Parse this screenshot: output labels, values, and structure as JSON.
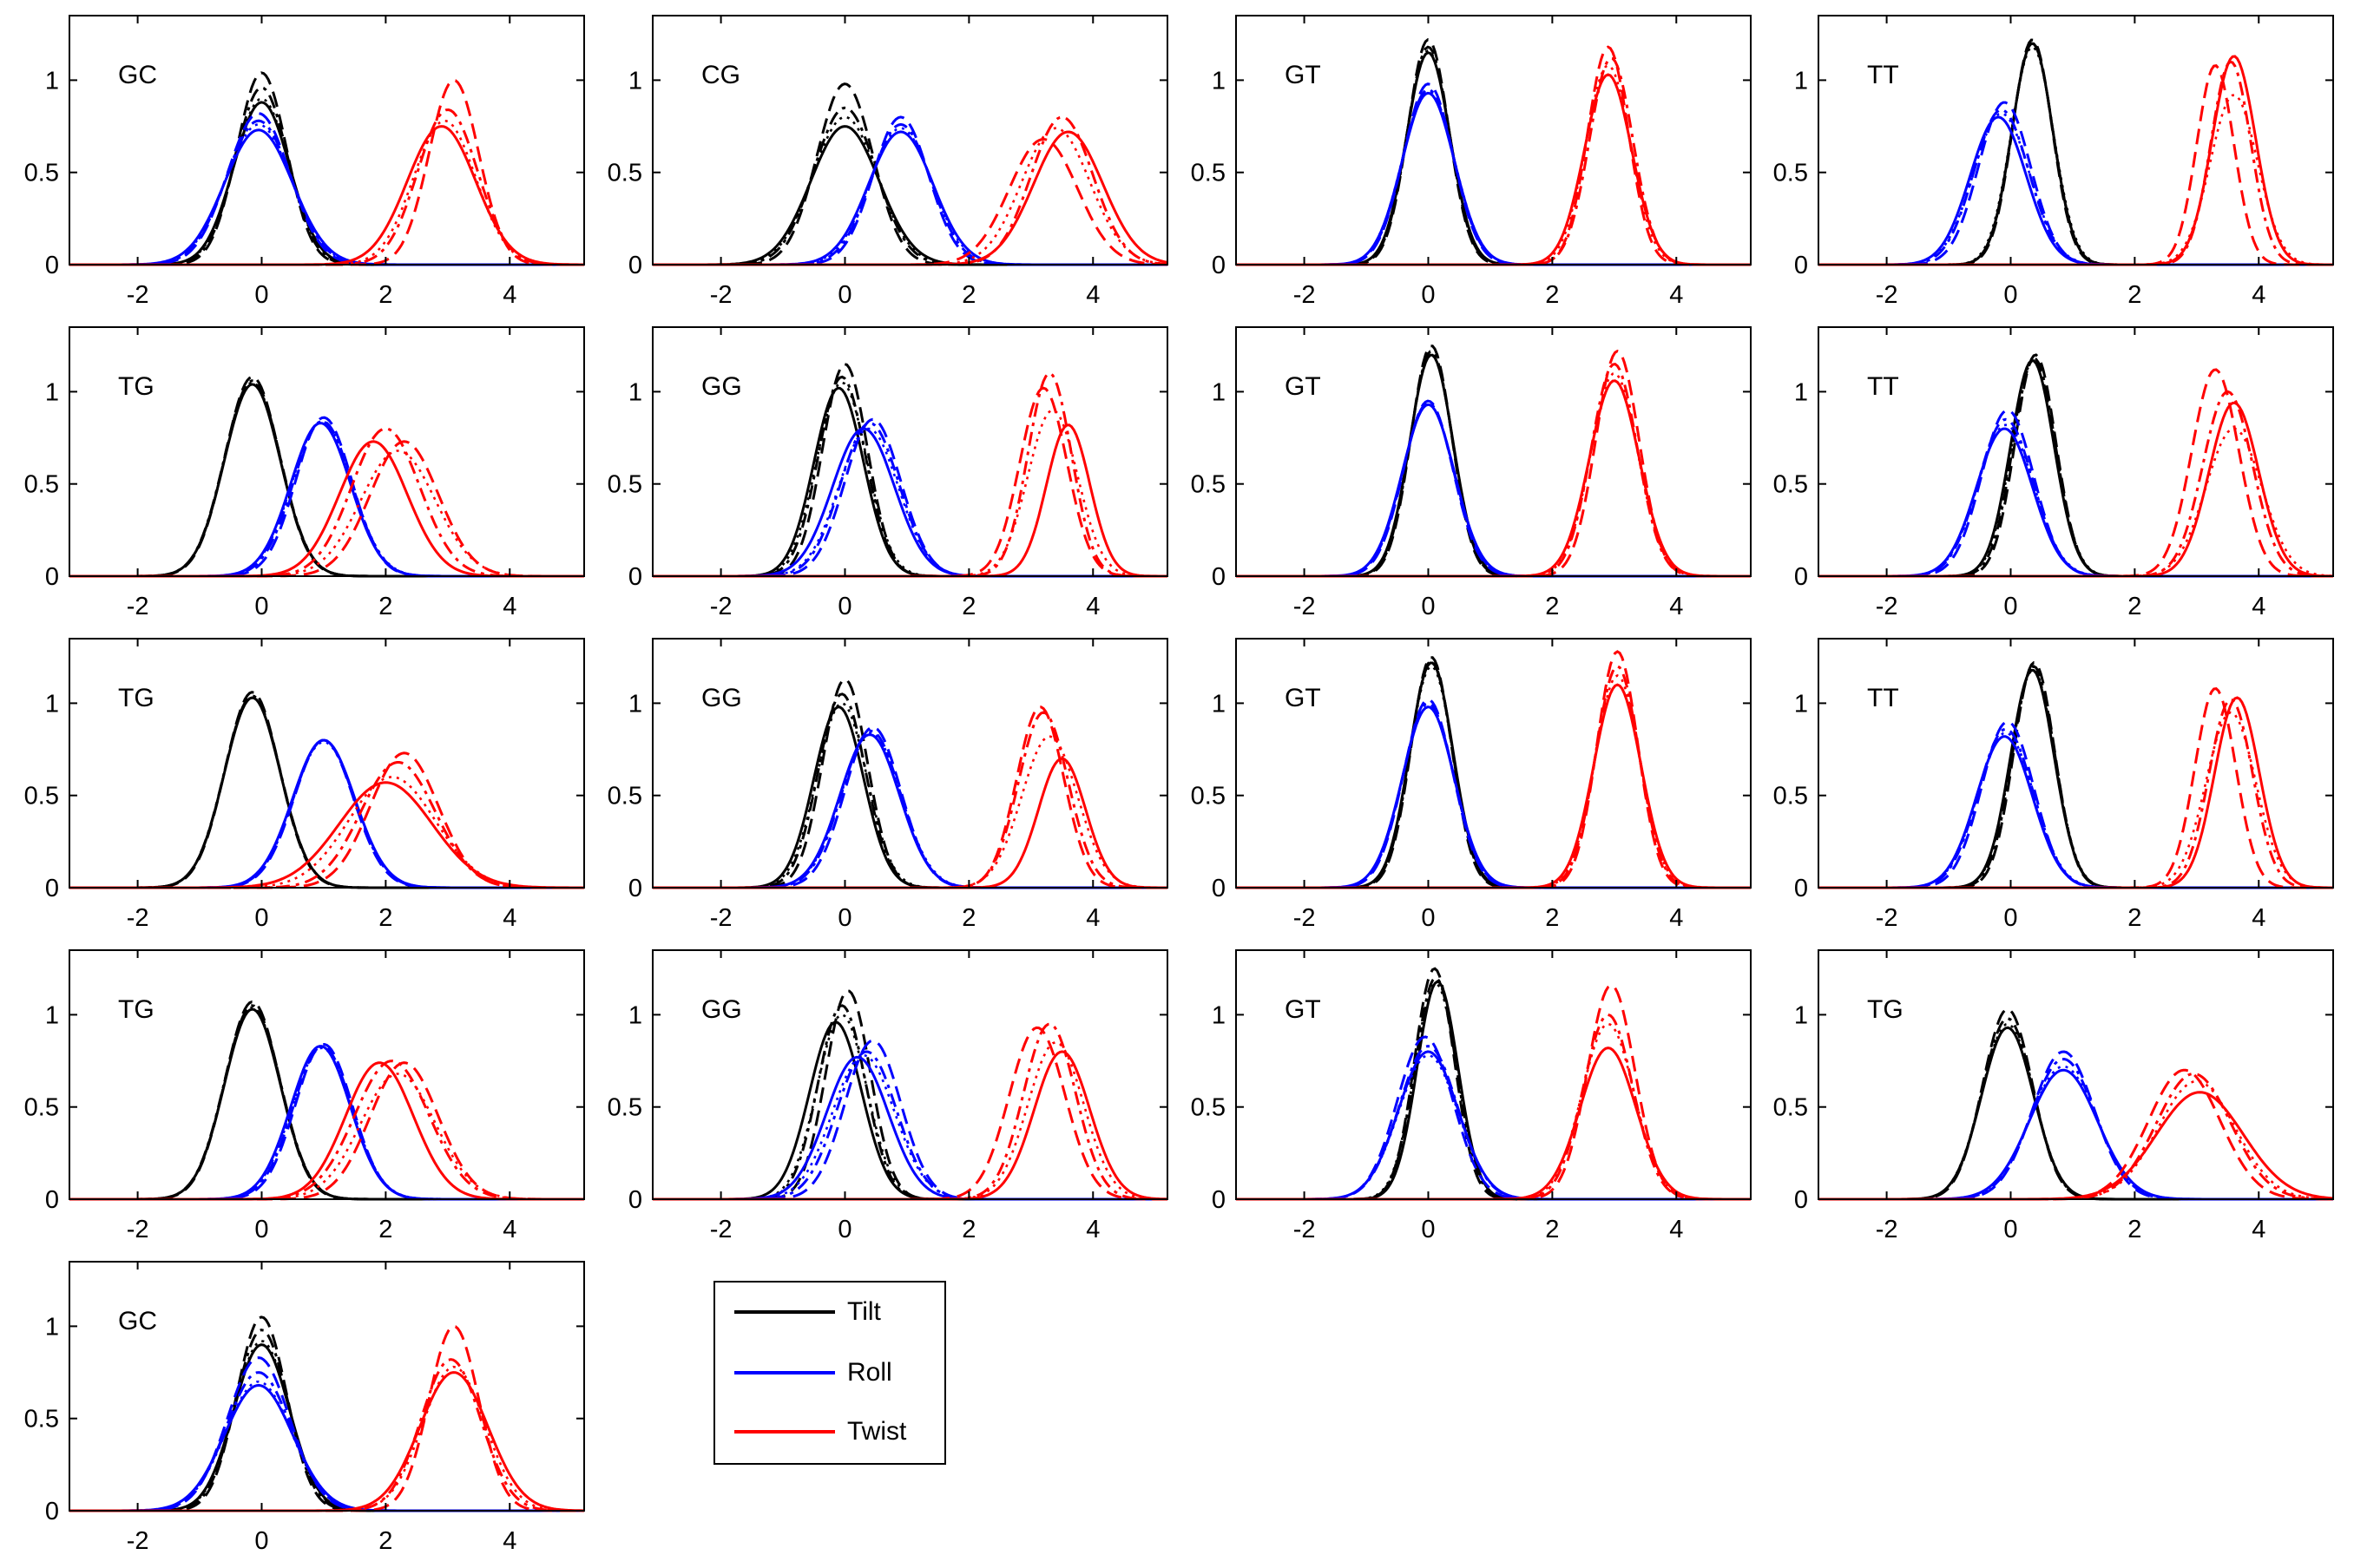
{
  "legend": [
    {
      "label": "Tilt",
      "color": "#000000"
    },
    {
      "label": "Roll",
      "color": "#0000ff"
    },
    {
      "label": "Twist",
      "color": "#ff0000"
    }
  ],
  "chart_data": {
    "type": "line",
    "grid": false,
    "x_ticks": [
      -2,
      0,
      2,
      4
    ],
    "y_ticks": [
      0,
      0.5,
      1
    ],
    "xlim": [
      -3.1,
      5.2
    ],
    "ylim": [
      0,
      1.35
    ],
    "line_styles": [
      "solid",
      "dashed",
      "dash-dot",
      "dotted"
    ],
    "panels": [
      {
        "label": "GC",
        "row": 0,
        "col": 0,
        "tilt": [
          [
            0,
            0.45,
            0.88
          ],
          [
            0,
            0.4,
            1.04
          ],
          [
            0,
            0.42,
            0.96
          ],
          [
            0,
            0.44,
            0.9
          ]
        ],
        "roll": [
          [
            -0.05,
            0.55,
            0.73
          ],
          [
            -0.05,
            0.5,
            0.82
          ],
          [
            -0.05,
            0.52,
            0.78
          ],
          [
            -0.05,
            0.53,
            0.76
          ]
        ],
        "twist": [
          [
            2.9,
            0.55,
            0.75
          ],
          [
            3.1,
            0.4,
            1.0
          ],
          [
            3.0,
            0.48,
            0.84
          ],
          [
            2.95,
            0.5,
            0.78
          ]
        ]
      },
      {
        "label": "CG",
        "row": 0,
        "col": 1,
        "tilt": [
          [
            0.0,
            0.55,
            0.75
          ],
          [
            0.0,
            0.45,
            0.98
          ],
          [
            0.0,
            0.5,
            0.85
          ],
          [
            0.0,
            0.52,
            0.8
          ]
        ],
        "roll": [
          [
            0.9,
            0.52,
            0.72
          ],
          [
            0.9,
            0.45,
            0.8
          ],
          [
            0.9,
            0.48,
            0.76
          ],
          [
            0.9,
            0.5,
            0.74
          ]
        ],
        "twist": [
          [
            3.6,
            0.56,
            0.72
          ],
          [
            3.2,
            0.55,
            0.68
          ],
          [
            3.5,
            0.5,
            0.8
          ],
          [
            3.4,
            0.55,
            0.74
          ]
        ]
      },
      {
        "label": "GT",
        "row": 0,
        "col": 2,
        "tilt": [
          [
            0.0,
            0.35,
            1.15
          ],
          [
            0.0,
            0.33,
            1.22
          ],
          [
            0.0,
            0.34,
            1.18
          ],
          [
            0.0,
            0.35,
            1.16
          ]
        ],
        "roll": [
          [
            0.0,
            0.42,
            0.93
          ],
          [
            0.0,
            0.4,
            0.98
          ],
          [
            0.0,
            0.41,
            0.95
          ],
          [
            0.0,
            0.42,
            0.94
          ]
        ],
        "twist": [
          [
            2.9,
            0.38,
            1.03
          ],
          [
            2.9,
            0.33,
            1.18
          ],
          [
            2.95,
            0.35,
            1.12
          ],
          [
            2.9,
            0.36,
            1.08
          ]
        ]
      },
      {
        "label": "TT",
        "row": 0,
        "col": 3,
        "tilt": [
          [
            0.35,
            0.33,
            1.2
          ],
          [
            0.35,
            0.32,
            1.22
          ],
          [
            0.35,
            0.33,
            1.2
          ],
          [
            0.35,
            0.34,
            1.18
          ]
        ],
        "roll": [
          [
            -0.2,
            0.45,
            0.8
          ],
          [
            -0.1,
            0.42,
            0.88
          ],
          [
            -0.15,
            0.44,
            0.84
          ],
          [
            -0.15,
            0.45,
            0.82
          ]
        ],
        "twist": [
          [
            3.6,
            0.35,
            1.13
          ],
          [
            3.3,
            0.3,
            1.08
          ],
          [
            3.55,
            0.32,
            1.1
          ],
          [
            3.6,
            0.38,
            0.92
          ]
        ]
      },
      {
        "label": "TG",
        "row": 1,
        "col": 0,
        "tilt": [
          [
            -0.15,
            0.45,
            1.04
          ],
          [
            -0.15,
            0.44,
            1.08
          ],
          [
            -0.15,
            0.45,
            1.06
          ],
          [
            -0.15,
            0.45,
            1.05
          ]
        ],
        "roll": [
          [
            0.95,
            0.48,
            0.83
          ],
          [
            1.0,
            0.45,
            0.86
          ],
          [
            0.98,
            0.47,
            0.84
          ],
          [
            0.97,
            0.48,
            0.84
          ]
        ],
        "twist": [
          [
            1.8,
            0.55,
            0.73
          ],
          [
            2.3,
            0.55,
            0.73
          ],
          [
            2.0,
            0.55,
            0.8
          ],
          [
            2.2,
            0.6,
            0.68
          ]
        ]
      },
      {
        "label": "GG",
        "row": 1,
        "col": 1,
        "tilt": [
          [
            -0.1,
            0.4,
            1.02
          ],
          [
            0.0,
            0.36,
            1.15
          ],
          [
            -0.05,
            0.38,
            1.08
          ],
          [
            -0.05,
            0.4,
            1.05
          ]
        ],
        "roll": [
          [
            0.3,
            0.5,
            0.8
          ],
          [
            0.45,
            0.45,
            0.85
          ],
          [
            0.4,
            0.47,
            0.83
          ],
          [
            0.38,
            0.48,
            0.8
          ]
        ],
        "twist": [
          [
            3.6,
            0.35,
            0.82
          ],
          [
            3.2,
            0.38,
            1.02
          ],
          [
            3.3,
            0.35,
            1.1
          ],
          [
            3.35,
            0.4,
            0.9
          ]
        ]
      },
      {
        "label": "GT",
        "row": 1,
        "col": 2,
        "tilt": [
          [
            0.05,
            0.35,
            1.2
          ],
          [
            0.05,
            0.33,
            1.25
          ],
          [
            0.05,
            0.34,
            1.22
          ],
          [
            0.05,
            0.35,
            1.2
          ]
        ],
        "roll": [
          [
            0.0,
            0.42,
            0.93
          ],
          [
            0.0,
            0.4,
            0.95
          ],
          [
            0.0,
            0.41,
            0.94
          ],
          [
            0.0,
            0.42,
            0.93
          ]
        ],
        "twist": [
          [
            3.0,
            0.4,
            1.06
          ],
          [
            3.05,
            0.35,
            1.22
          ],
          [
            3.0,
            0.37,
            1.15
          ],
          [
            3.0,
            0.38,
            1.1
          ]
        ]
      },
      {
        "label": "TT",
        "row": 1,
        "col": 3,
        "tilt": [
          [
            0.35,
            0.35,
            1.17
          ],
          [
            0.4,
            0.33,
            1.2
          ],
          [
            0.38,
            0.34,
            1.18
          ],
          [
            0.37,
            0.35,
            1.17
          ]
        ],
        "roll": [
          [
            -0.1,
            0.45,
            0.8
          ],
          [
            -0.05,
            0.42,
            0.9
          ],
          [
            -0.08,
            0.44,
            0.85
          ],
          [
            -0.08,
            0.45,
            0.82
          ]
        ],
        "twist": [
          [
            3.6,
            0.4,
            0.94
          ],
          [
            3.3,
            0.38,
            1.12
          ],
          [
            3.5,
            0.4,
            1.0
          ],
          [
            3.6,
            0.45,
            0.8
          ]
        ]
      },
      {
        "label": "TG",
        "row": 2,
        "col": 0,
        "tilt": [
          [
            -0.15,
            0.45,
            1.03
          ],
          [
            -0.15,
            0.44,
            1.06
          ],
          [
            -0.15,
            0.45,
            1.04
          ],
          [
            -0.15,
            0.45,
            1.03
          ]
        ],
        "roll": [
          [
            1.0,
            0.5,
            0.8
          ],
          [
            1.0,
            0.48,
            0.8
          ],
          [
            1.0,
            0.49,
            0.8
          ],
          [
            1.0,
            0.5,
            0.79
          ]
        ],
        "twist": [
          [
            2.0,
            0.75,
            0.57
          ],
          [
            2.3,
            0.55,
            0.73
          ],
          [
            2.2,
            0.6,
            0.68
          ],
          [
            2.1,
            0.7,
            0.6
          ]
        ]
      },
      {
        "label": "GG",
        "row": 2,
        "col": 1,
        "tilt": [
          [
            -0.1,
            0.4,
            0.98
          ],
          [
            0.0,
            0.36,
            1.13
          ],
          [
            -0.05,
            0.38,
            1.05
          ],
          [
            -0.05,
            0.4,
            1.0
          ]
        ],
        "roll": [
          [
            0.4,
            0.48,
            0.83
          ],
          [
            0.45,
            0.45,
            0.87
          ],
          [
            0.42,
            0.47,
            0.85
          ],
          [
            0.42,
            0.48,
            0.84
          ]
        ],
        "twist": [
          [
            3.5,
            0.38,
            0.7
          ],
          [
            3.15,
            0.38,
            0.98
          ],
          [
            3.2,
            0.4,
            0.95
          ],
          [
            3.3,
            0.45,
            0.82
          ]
        ]
      },
      {
        "label": "GT",
        "row": 2,
        "col": 2,
        "tilt": [
          [
            0.05,
            0.35,
            1.22
          ],
          [
            0.05,
            0.33,
            1.25
          ],
          [
            0.05,
            0.34,
            1.23
          ],
          [
            0.05,
            0.35,
            1.2
          ]
        ],
        "roll": [
          [
            0.0,
            0.42,
            0.98
          ],
          [
            0.0,
            0.4,
            1.02
          ],
          [
            0.0,
            0.41,
            1.0
          ],
          [
            0.0,
            0.42,
            0.98
          ]
        ],
        "twist": [
          [
            3.05,
            0.38,
            1.1
          ],
          [
            3.05,
            0.33,
            1.28
          ],
          [
            3.05,
            0.35,
            1.2
          ],
          [
            3.05,
            0.36,
            1.15
          ]
        ]
      },
      {
        "label": "TT",
        "row": 2,
        "col": 3,
        "tilt": [
          [
            0.35,
            0.35,
            1.18
          ],
          [
            0.38,
            0.33,
            1.22
          ],
          [
            0.37,
            0.34,
            1.2
          ],
          [
            0.36,
            0.35,
            1.18
          ]
        ],
        "roll": [
          [
            -0.1,
            0.45,
            0.82
          ],
          [
            -0.05,
            0.42,
            0.9
          ],
          [
            -0.08,
            0.44,
            0.86
          ],
          [
            -0.08,
            0.45,
            0.84
          ]
        ],
        "twist": [
          [
            3.65,
            0.36,
            1.03
          ],
          [
            3.3,
            0.33,
            1.08
          ],
          [
            3.55,
            0.35,
            1.02
          ],
          [
            3.55,
            0.4,
            0.95
          ]
        ]
      },
      {
        "label": "TG",
        "row": 3,
        "col": 0,
        "tilt": [
          [
            -0.15,
            0.45,
            1.03
          ],
          [
            -0.15,
            0.44,
            1.07
          ],
          [
            -0.15,
            0.45,
            1.05
          ],
          [
            -0.15,
            0.45,
            1.04
          ]
        ],
        "roll": [
          [
            0.95,
            0.48,
            0.83
          ],
          [
            1.0,
            0.46,
            0.84
          ],
          [
            0.98,
            0.47,
            0.83
          ],
          [
            0.97,
            0.48,
            0.82
          ]
        ],
        "twist": [
          [
            1.9,
            0.55,
            0.74
          ],
          [
            2.3,
            0.55,
            0.74
          ],
          [
            2.1,
            0.6,
            0.75
          ],
          [
            2.2,
            0.6,
            0.68
          ]
        ]
      },
      {
        "label": "GG",
        "row": 3,
        "col": 1,
        "tilt": [
          [
            -0.15,
            0.42,
            0.96
          ],
          [
            0.05,
            0.36,
            1.13
          ],
          [
            -0.05,
            0.38,
            1.05
          ],
          [
            -0.05,
            0.4,
            1.0
          ]
        ],
        "roll": [
          [
            0.2,
            0.5,
            0.77
          ],
          [
            0.45,
            0.45,
            0.86
          ],
          [
            0.35,
            0.48,
            0.8
          ],
          [
            0.3,
            0.5,
            0.78
          ]
        ],
        "twist": [
          [
            3.5,
            0.45,
            0.8
          ],
          [
            3.1,
            0.45,
            0.93
          ],
          [
            3.3,
            0.42,
            0.95
          ],
          [
            3.4,
            0.45,
            0.85
          ]
        ]
      },
      {
        "label": "GT",
        "row": 3,
        "col": 2,
        "tilt": [
          [
            0.15,
            0.33,
            1.18
          ],
          [
            0.1,
            0.32,
            1.25
          ],
          [
            0.12,
            0.33,
            1.2
          ],
          [
            0.12,
            0.34,
            1.17
          ]
        ],
        "roll": [
          [
            0.0,
            0.48,
            0.8
          ],
          [
            -0.05,
            0.45,
            0.88
          ],
          [
            0.0,
            0.47,
            0.83
          ],
          [
            0.0,
            0.48,
            0.78
          ]
        ],
        "twist": [
          [
            2.9,
            0.45,
            0.82
          ],
          [
            2.95,
            0.38,
            1.16
          ],
          [
            2.9,
            0.4,
            1.0
          ],
          [
            2.9,
            0.42,
            0.95
          ]
        ]
      },
      {
        "label": "TG",
        "row": 3,
        "col": 3,
        "tilt": [
          [
            -0.05,
            0.42,
            0.93
          ],
          [
            -0.05,
            0.4,
            1.03
          ],
          [
            -0.05,
            0.41,
            0.98
          ],
          [
            -0.05,
            0.42,
            0.95
          ]
        ],
        "roll": [
          [
            0.85,
            0.55,
            0.7
          ],
          [
            0.85,
            0.5,
            0.8
          ],
          [
            0.85,
            0.52,
            0.76
          ],
          [
            0.85,
            0.54,
            0.72
          ]
        ],
        "twist": [
          [
            3.05,
            0.7,
            0.58
          ],
          [
            2.8,
            0.58,
            0.7
          ],
          [
            2.95,
            0.6,
            0.68
          ],
          [
            3.0,
            0.62,
            0.64
          ]
        ]
      },
      {
        "label": "GC",
        "row": 4,
        "col": 0,
        "tilt": [
          [
            0,
            0.45,
            0.9
          ],
          [
            0,
            0.4,
            1.05
          ],
          [
            0,
            0.42,
            0.98
          ],
          [
            0,
            0.44,
            0.92
          ]
        ],
        "roll": [
          [
            -0.05,
            0.55,
            0.68
          ],
          [
            -0.05,
            0.5,
            0.83
          ],
          [
            -0.05,
            0.52,
            0.75
          ],
          [
            -0.05,
            0.53,
            0.7
          ]
        ],
        "twist": [
          [
            3.1,
            0.55,
            0.75
          ],
          [
            3.1,
            0.4,
            1.0
          ],
          [
            3.05,
            0.48,
            0.82
          ],
          [
            3.1,
            0.5,
            0.78
          ]
        ]
      }
    ]
  }
}
